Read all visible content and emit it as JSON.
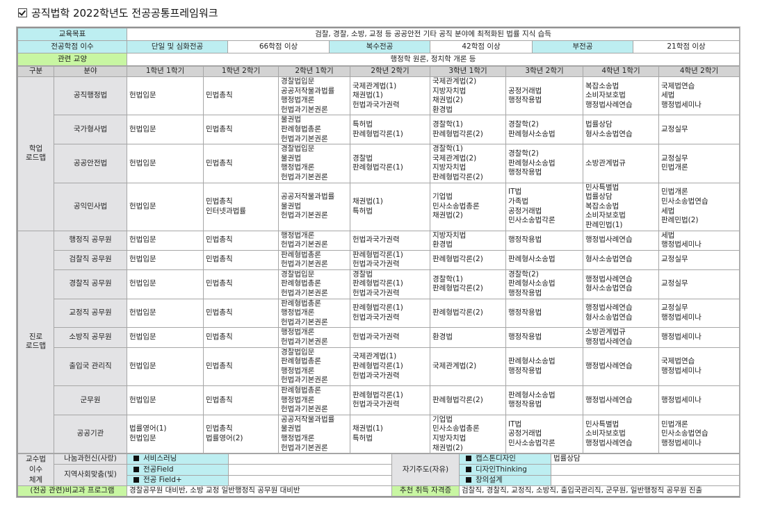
{
  "title": "공직법학 2022학년도 전공공통프레임워크",
  "goal": {
    "label": "교육목표",
    "value": "검찰, 경찰, 소방, 교정 등 공공안전 기타 공직 분야에 최적화된 법률 지식 습득"
  },
  "credits": {
    "label": "전공학점 이수",
    "items": [
      {
        "type": "단일 및 심화전공",
        "value": "66학점 이상"
      },
      {
        "type": "복수전공",
        "value": "42학점 이상"
      },
      {
        "type": "부전공",
        "value": "21학점 이상"
      }
    ]
  },
  "liberal": {
    "label": "관련 교양",
    "value": "행정학 원론, 정치학 개론 등"
  },
  "header": [
    "구분",
    "분야",
    "1학년 1학기",
    "1학년 2학기",
    "2학년 1학기",
    "2학년 2학기",
    "3학년 1학기",
    "3학년 2학기",
    "4학년 1학기",
    "4학년 2학기"
  ],
  "roadmap": [
    {
      "group": "학업\n로드맵",
      "rows": [
        {
          "field": "공직행정법",
          "cells": [
            [
              "헌법입문"
            ],
            [
              "민법총칙"
            ],
            [
              "경찰법입문",
              "공공저작물과법률",
              "행정법개론",
              "헌법과기본권론"
            ],
            [
              "국제관계법(1)",
              "채권법(1)",
              "헌법과국가권력"
            ],
            [
              "국제관계법(2)",
              "지방자치법",
              "채권법(2)",
              "환경법"
            ],
            [
              "공정거래법",
              "행정작용법"
            ],
            [
              "복잡소송법",
              "소비자보호법",
              "행정법사례연습"
            ],
            [
              "국제법연습",
              "세법",
              "행정법세미나"
            ]
          ]
        },
        {
          "field": "국가형사법",
          "cells": [
            [
              "헌법입문"
            ],
            [
              "민법총칙"
            ],
            [
              "물권법",
              "판례형법총론",
              "헌법과기본권론"
            ],
            [
              "특허법",
              "판례형법각론(1)"
            ],
            [
              "경찰학(1)",
              "판례형법각론(2)"
            ],
            [
              "경찰학(2)",
              "판례형사소송법"
            ],
            [
              "법률상담",
              "형사소송법연습"
            ],
            [
              "교정실무"
            ]
          ]
        },
        {
          "field": "공공안전법",
          "cells": [
            [
              "헌법입문"
            ],
            [
              "민법총칙"
            ],
            [
              "경찰법입문",
              "물권법",
              "행정법개론",
              "헌법과기본권론"
            ],
            [
              "경찰법",
              "판례형법각론(1)"
            ],
            [
              "경찰학(1)",
              "국제관계법(2)",
              "지방자치법",
              "판례형법각론(2)"
            ],
            [
              "경찰학(2)",
              "판례형사소송법",
              "행정작용법"
            ],
            [
              "소방관계법규"
            ],
            [
              "교정실무",
              "민법개론"
            ]
          ]
        },
        {
          "field": "공익민사법",
          "cells": [
            [
              "헌법입문"
            ],
            [
              "민법총칙",
              "인터넷과법률"
            ],
            [
              "공공저작물과법률",
              "물권법",
              "헌법과기본권론"
            ],
            [
              "채권법(1)",
              "특허법"
            ],
            [
              "기업법",
              "민사소송법총론",
              "채권법(2)"
            ],
            [
              "IT법",
              "가족법",
              "공정거래법",
              "민사소송법각론"
            ],
            [
              "민사특별법",
              "법률상담",
              "복잡소송법",
              "소비자보호법",
              "판례민법(1)"
            ],
            [
              "민법개론",
              "민사소송법연습",
              "세법",
              "판례민법(2)"
            ]
          ]
        }
      ]
    },
    {
      "group": "진로\n로드맵",
      "rows": [
        {
          "field": "행정직 공무원",
          "cells": [
            [
              "헌법입문"
            ],
            [
              "민법총칙"
            ],
            [
              "행정법개론",
              "헌법과기본권론"
            ],
            [
              "헌법과국가권력"
            ],
            [
              "지방자치법",
              "환경법"
            ],
            [
              "행정작용법"
            ],
            [
              "행정법사례연습"
            ],
            [
              "세법",
              "행정법세미나"
            ]
          ]
        },
        {
          "field": "검찰직 공무원",
          "cells": [
            [
              "헌법입문"
            ],
            [
              "민법총칙"
            ],
            [
              "판례형법총론",
              "헌법과기본권론"
            ],
            [
              "판례형법각론(1)",
              "헌법과국가권력"
            ],
            [
              "판례형법각론(2)"
            ],
            [
              "판례형사소송법"
            ],
            [
              "형사소송법연습"
            ],
            [
              "교정실무"
            ]
          ]
        },
        {
          "field": "경찰직 공무원",
          "cells": [
            [
              "헌법입문"
            ],
            [
              "민법총칙"
            ],
            [
              "경찰법입문",
              "판례형법총론",
              "헌법과기본권론"
            ],
            [
              "경찰법",
              "판례형법각론(1)",
              "헌법과국가권력"
            ],
            [
              "경찰학(1)",
              "판례형법각론(2)"
            ],
            [
              "경찰학(2)",
              "판례형사소송법",
              "행정작용법"
            ],
            [
              "행정법사례연습",
              "형사소송법연습"
            ],
            [
              "교정실무"
            ]
          ]
        },
        {
          "field": "교정직 공무원",
          "cells": [
            [
              "헌법입문"
            ],
            [
              "민법총칙"
            ],
            [
              "판례형법총론",
              "행정법개론",
              "헌법과기본권론"
            ],
            [
              "판례형법각론(1)",
              "헌법과국가권력"
            ],
            [
              "판례형법각론(2)"
            ],
            [
              "행정작용법"
            ],
            [
              "행정법사례연습",
              "형사소송법연습"
            ],
            [
              "교정실무",
              "행정법세미나"
            ]
          ]
        },
        {
          "field": "소방직 공무원",
          "cells": [
            [
              "헌법입문"
            ],
            [
              "민법총칙"
            ],
            [
              "행정법개론",
              "헌법과기본권론"
            ],
            [
              "헌법과국가권력"
            ],
            [
              "환경법"
            ],
            [
              "행정작용법"
            ],
            [
              "소방관계법규",
              "행정법사례연습"
            ],
            [
              "행정법세미나"
            ]
          ]
        },
        {
          "field": "출입국 관리직",
          "cells": [
            [
              "헌법입문"
            ],
            [
              "민법총칙"
            ],
            [
              "경찰법입문",
              "판례형법총론",
              "행정법개론",
              "헌법과기본권론"
            ],
            [
              "국제관계법(1)",
              "판례형법각론(1)",
              "헌법과국가권력"
            ],
            [
              "국제관계법(2)"
            ],
            [
              "판례형사소송법",
              "행정작용법"
            ],
            [
              "행정법사례연습"
            ],
            [
              "국제법연습",
              "행정법세미나"
            ]
          ]
        },
        {
          "field": "군무원",
          "cells": [
            [
              "헌법입문"
            ],
            [
              "민법총칙"
            ],
            [
              "판례형법총론",
              "행정법개론",
              "헌법과기본권론"
            ],
            [
              "판례형법각론(1)",
              "헌법과국가권력"
            ],
            [
              "판례형법각론(2)"
            ],
            [
              "판례형사소송법",
              "행정작용법"
            ],
            [
              "행정법사례연습"
            ],
            [
              "행정법세미나"
            ]
          ]
        },
        {
          "field": "공공기관",
          "cells": [
            [
              "법률영어(1)",
              "헌법입문"
            ],
            [
              "민법총칙",
              "법률영어(2)"
            ],
            [
              "공공저작물과법률",
              "물권법",
              "행정법개론",
              "헌법과기본권론"
            ],
            [
              "채권법(1)",
              "특허법"
            ],
            [
              "기업법",
              "민사소송법총론",
              "지방자치법",
              "채권법(2)"
            ],
            [
              "IT법",
              "공정거래법",
              "민사소송법각론"
            ],
            [
              "민사특별법",
              "소비자보호법",
              "행정법사례연습"
            ],
            [
              "민법개론",
              "민사소송법연습",
              "행정법세미나"
            ]
          ]
        }
      ]
    }
  ],
  "teaching": {
    "label": "교수법\n이수\n체계",
    "sharing": {
      "label": "나눔과헌신(사랑)",
      "item": "서비스러닝",
      "value": ""
    },
    "community": {
      "label": "지역사회맞춤(빛)",
      "items": [
        "전공Field",
        "전공 Field+"
      ]
    },
    "self": {
      "label": "자기주도(자유)",
      "items": [
        "캡스톤디자인",
        "디자인Thinking",
        "창의설계"
      ],
      "values": [
        "법률상담",
        "",
        ""
      ]
    }
  },
  "extra": {
    "label": "(전공 관련)비교과 프로그램",
    "value": "경찰공무원 대비반, 소방 교정 일반행정직 공무원 대비반"
  },
  "certs": {
    "label": "추천 취득 자격증",
    "value": "검찰직, 경찰직, 교정직, 소방직, 출입국관리직, 군무원, 일반행정직 공무원 진출"
  },
  "colors": {
    "cyan": "#bdeef1",
    "green": "#c8f6a2",
    "header_gray": "#d3d3d3",
    "label_gray": "#e3e3e5"
  }
}
